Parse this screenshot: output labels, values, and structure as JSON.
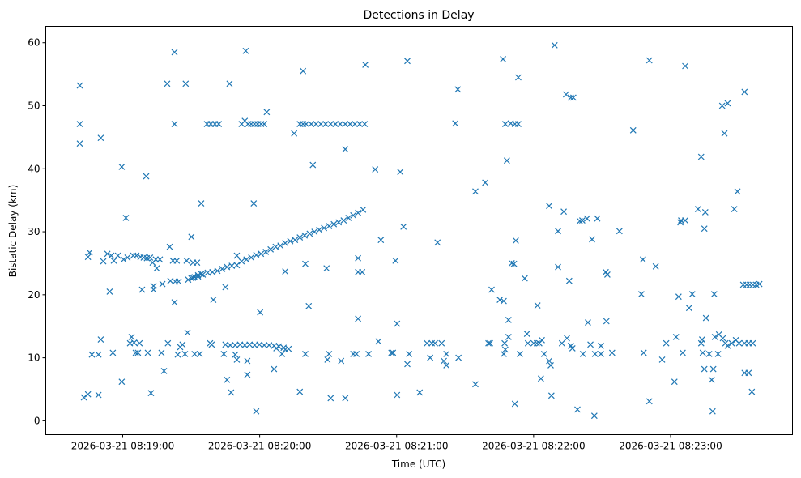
{
  "chart_data": {
    "type": "scatter",
    "title": "Detections in Delay",
    "xlabel": "Time (UTC)",
    "ylabel": "Bistatic Delay (km)",
    "x_units": "seconds since 2026-03-21 08:19:00 UTC",
    "xlim": [
      -33.7,
      293.4
    ],
    "ylim": [
      -2.2,
      62.6
    ],
    "grid": false,
    "marker": "x",
    "color": "#1f77b4",
    "x_ticks": [
      {
        "value": 0,
        "label": "2026-03-21 08:19:00"
      },
      {
        "value": 60,
        "label": "2026-03-21 08:20:00"
      },
      {
        "value": 120,
        "label": "2026-03-21 08:21:00"
      },
      {
        "value": 180,
        "label": "2026-03-21 08:22:00"
      },
      {
        "value": 240,
        "label": "2026-03-21 08:23:00"
      }
    ],
    "y_ticks": [
      {
        "value": 0,
        "label": "0"
      },
      {
        "value": 10,
        "label": "10"
      },
      {
        "value": 20,
        "label": "20"
      },
      {
        "value": 30,
        "label": "30"
      },
      {
        "value": 40,
        "label": "40"
      },
      {
        "value": 50,
        "label": "50"
      },
      {
        "value": 60,
        "label": "60"
      }
    ],
    "points": [
      [
        -18.8,
        53.2
      ],
      [
        -18.8,
        47.1
      ],
      [
        -18.8,
        44.0
      ],
      [
        -17,
        3.7
      ],
      [
        -15.2,
        4.2
      ],
      [
        -15.2,
        26.0
      ],
      [
        -14.5,
        26.7
      ],
      [
        -13.5,
        10.5
      ],
      [
        -10.6,
        10.5
      ],
      [
        -10.6,
        4.1
      ],
      [
        -9.6,
        44.9
      ],
      [
        -9.6,
        12.9
      ],
      [
        -8.5,
        25.3
      ],
      [
        -6.7,
        26.5
      ],
      [
        -5.7,
        20.5
      ],
      [
        -5.0,
        26.2
      ],
      [
        -4.3,
        10.8
      ],
      [
        -3.9,
        25.4
      ],
      [
        -2.1,
        26.2
      ],
      [
        -0.4,
        6.2
      ],
      [
        -0.4,
        40.3
      ],
      [
        0.4,
        25.6
      ],
      [
        1.4,
        32.2
      ],
      [
        2.1,
        25.9
      ],
      [
        3.2,
        12.3
      ],
      [
        3.9,
        13.3
      ],
      [
        4.6,
        26.2
      ],
      [
        5.0,
        12.4
      ],
      [
        5.7,
        10.8
      ],
      [
        6.0,
        26.2
      ],
      [
        6.7,
        10.8
      ],
      [
        7.4,
        12.3
      ],
      [
        7.8,
        26.0
      ],
      [
        9.2,
        25.9
      ],
      [
        8.5,
        20.8
      ],
      [
        10.3,
        38.8
      ],
      [
        10.6,
        25.8
      ],
      [
        11.0,
        10.8
      ],
      [
        12.0,
        25.9
      ],
      [
        12.4,
        4.4
      ],
      [
        13.1,
        25.1
      ],
      [
        13.5,
        20.8
      ],
      [
        13.5,
        21.4
      ],
      [
        14.9,
        24.2
      ],
      [
        14.5,
        25.6
      ],
      [
        16.3,
        25.6
      ],
      [
        17.0,
        10.8
      ],
      [
        17.4,
        21.7
      ],
      [
        18.1,
        7.9
      ],
      [
        19.5,
        53.5
      ],
      [
        19.8,
        12.3
      ],
      [
        20.6,
        27.6
      ],
      [
        20.9,
        22.2
      ],
      [
        22.0,
        25.4
      ],
      [
        22.7,
        58.5
      ],
      [
        22.7,
        47.1
      ],
      [
        22.7,
        18.8
      ],
      [
        23.0,
        22.1
      ],
      [
        23.7,
        25.4
      ],
      [
        24.1,
        10.5
      ],
      [
        24.5,
        22.1
      ],
      [
        25.2,
        11.7
      ],
      [
        26.2,
        12.1
      ],
      [
        27.3,
        10.6
      ],
      [
        27.6,
        53.5
      ],
      [
        28.0,
        25.4
      ],
      [
        28.4,
        14.0
      ],
      [
        30.1,
        29.2
      ],
      [
        30.1,
        22.6
      ],
      [
        30.8,
        25.1
      ],
      [
        31.5,
        10.6
      ],
      [
        31.5,
        22.8
      ],
      [
        32.6,
        25.1
      ],
      [
        33.0,
        23.1
      ],
      [
        33.7,
        10.6
      ],
      [
        34.4,
        34.5
      ],
      [
        34.4,
        23.3
      ],
      [
        28.7,
        22.4
      ],
      [
        30.8,
        22.7
      ],
      [
        33.0,
        22.9
      ],
      [
        35.1,
        23.2
      ],
      [
        37.2,
        23.5
      ],
      [
        39.3,
        23.6
      ],
      [
        41.5,
        23.8
      ],
      [
        43.6,
        24.1
      ],
      [
        45.7,
        24.4
      ],
      [
        47.8,
        24.6
      ],
      [
        50.0,
        24.7
      ],
      [
        52.1,
        25.3
      ],
      [
        54.2,
        25.6
      ],
      [
        56.3,
        25.9
      ],
      [
        58.5,
        26.3
      ],
      [
        60.6,
        26.5
      ],
      [
        62.7,
        26.8
      ],
      [
        64.8,
        27.2
      ],
      [
        67.0,
        27.6
      ],
      [
        69.1,
        27.8
      ],
      [
        71.2,
        28.2
      ],
      [
        73.4,
        28.5
      ],
      [
        75.5,
        28.7
      ],
      [
        77.6,
        29.1
      ],
      [
        79.7,
        29.4
      ],
      [
        81.9,
        29.7
      ],
      [
        84.0,
        30.0
      ],
      [
        86.1,
        30.3
      ],
      [
        88.2,
        30.6
      ],
      [
        90.4,
        30.9
      ],
      [
        92.5,
        31.2
      ],
      [
        94.6,
        31.5
      ],
      [
        96.8,
        31.8
      ],
      [
        98.9,
        32.2
      ],
      [
        101.0,
        32.6
      ],
      [
        103.1,
        33.0
      ],
      [
        105.3,
        33.5
      ],
      [
        36.9,
        47.1
      ],
      [
        38.6,
        47.1
      ],
      [
        40.4,
        47.1
      ],
      [
        42.1,
        47.1
      ],
      [
        52.1,
        47.1
      ],
      [
        53.5,
        47.6
      ],
      [
        54.9,
        47.1
      ],
      [
        56.3,
        47.1
      ],
      [
        57.7,
        47.1
      ],
      [
        59.1,
        47.1
      ],
      [
        60.6,
        47.1
      ],
      [
        62.0,
        47.1
      ],
      [
        77.6,
        47.1
      ],
      [
        79.0,
        47.1
      ],
      [
        80.4,
        47.1
      ],
      [
        82.6,
        47.1
      ],
      [
        84.7,
        47.1
      ],
      [
        86.8,
        47.1
      ],
      [
        88.9,
        47.1
      ],
      [
        91.1,
        47.1
      ],
      [
        93.2,
        47.1
      ],
      [
        95.3,
        47.1
      ],
      [
        97.5,
        47.1
      ],
      [
        99.6,
        47.1
      ],
      [
        101.7,
        47.1
      ],
      [
        103.8,
        47.1
      ],
      [
        106.0,
        47.1
      ],
      [
        45.0,
        12.1
      ],
      [
        47.1,
        12.0
      ],
      [
        49.3,
        12.0
      ],
      [
        51.4,
        12.1
      ],
      [
        53.5,
        12.0
      ],
      [
        55.6,
        12.1
      ],
      [
        57.8,
        12.0
      ],
      [
        59.9,
        12.1
      ],
      [
        62.0,
        12.0
      ],
      [
        64.1,
        12.0
      ],
      [
        66.3,
        11.9
      ],
      [
        68.4,
        11.8
      ],
      [
        70.5,
        11.6
      ],
      [
        72.7,
        11.4
      ],
      [
        38.3,
        12.3
      ],
      [
        39.0,
        12.1
      ],
      [
        44.3,
        10.6
      ],
      [
        39.7,
        19.2
      ],
      [
        45.0,
        21.2
      ],
      [
        45.7,
        6.5
      ],
      [
        46.8,
        53.5
      ],
      [
        47.5,
        4.5
      ],
      [
        49.3,
        10.5
      ],
      [
        50.0,
        26.2
      ],
      [
        50.0,
        9.7
      ],
      [
        53.9,
        58.7
      ],
      [
        54.6,
        7.3
      ],
      [
        54.6,
        9.5
      ],
      [
        57.4,
        34.5
      ],
      [
        58.5,
        1.5
      ],
      [
        60.2,
        17.2
      ],
      [
        63.1,
        49.0
      ],
      [
        66.3,
        8.2
      ],
      [
        67.3,
        11.5
      ],
      [
        69.8,
        10.6
      ],
      [
        71.2,
        11.3
      ],
      [
        71.2,
        23.7
      ],
      [
        75.1,
        45.6
      ],
      [
        77.6,
        4.6
      ],
      [
        79.0,
        55.5
      ],
      [
        80.0,
        24.9
      ],
      [
        80.0,
        10.6
      ],
      [
        81.5,
        18.2
      ],
      [
        83.3,
        40.6
      ],
      [
        89.3,
        24.2
      ],
      [
        89.7,
        9.7
      ],
      [
        90.4,
        10.6
      ],
      [
        91.1,
        3.6
      ],
      [
        95.7,
        9.5
      ],
      [
        97.5,
        3.6
      ],
      [
        97.5,
        43.1
      ],
      [
        101.0,
        10.6
      ],
      [
        102.4,
        10.6
      ],
      [
        103.1,
        23.6
      ],
      [
        104.9,
        23.6
      ],
      [
        103.1,
        25.8
      ],
      [
        103.1,
        16.2
      ],
      [
        106.3,
        56.5
      ],
      [
        107.7,
        10.6
      ],
      [
        110.6,
        39.9
      ],
      [
        112.0,
        12.6
      ],
      [
        113.1,
        28.7
      ],
      [
        117.7,
        10.8
      ],
      [
        118.4,
        10.8
      ],
      [
        119.5,
        25.4
      ],
      [
        120.2,
        4.1
      ],
      [
        120.2,
        15.4
      ],
      [
        121.6,
        39.5
      ],
      [
        123.0,
        30.8
      ],
      [
        124.7,
        57.1
      ],
      [
        124.7,
        9.0
      ],
      [
        125.5,
        10.6
      ],
      [
        130.1,
        4.5
      ],
      [
        133.3,
        12.3
      ],
      [
        134.7,
        10.0
      ],
      [
        135.4,
        12.3
      ],
      [
        136.8,
        12.3
      ],
      [
        137.9,
        28.3
      ],
      [
        139.7,
        12.3
      ],
      [
        140.7,
        9.5
      ],
      [
        141.8,
        10.6
      ],
      [
        141.8,
        8.8
      ],
      [
        145.7,
        47.2
      ],
      [
        146.8,
        52.6
      ],
      [
        147.1,
        10.0
      ],
      [
        154.5,
        5.8
      ],
      [
        154.5,
        36.4
      ],
      [
        158.8,
        37.8
      ],
      [
        160.2,
        12.3
      ],
      [
        160.9,
        12.3
      ],
      [
        161.6,
        20.8
      ],
      [
        165.2,
        19.2
      ],
      [
        166.6,
        57.4
      ],
      [
        166.9,
        19.0
      ],
      [
        166.9,
        10.6
      ],
      [
        167.3,
        12.3
      ],
      [
        167.6,
        11.3
      ],
      [
        167.6,
        47.1
      ],
      [
        168.3,
        41.3
      ],
      [
        169.0,
        13.3
      ],
      [
        169.0,
        16.0
      ],
      [
        170.0,
        47.2
      ],
      [
        170.4,
        25.0
      ],
      [
        171.4,
        24.9
      ],
      [
        171.8,
        47.1
      ],
      [
        173.3,
        47.1
      ],
      [
        171.8,
        2.7
      ],
      [
        172.2,
        28.6
      ],
      [
        173.3,
        54.5
      ],
      [
        174.0,
        10.6
      ],
      [
        176.1,
        22.6
      ],
      [
        177.1,
        13.8
      ],
      [
        177.5,
        12.3
      ],
      [
        180.0,
        12.3
      ],
      [
        181.4,
        12.3
      ],
      [
        181.7,
        18.3
      ],
      [
        182.5,
        12.3
      ],
      [
        183.2,
        6.7
      ],
      [
        183.6,
        12.8
      ],
      [
        184.6,
        10.6
      ],
      [
        186.8,
        9.5
      ],
      [
        187.5,
        8.8
      ],
      [
        186.8,
        34.1
      ],
      [
        187.8,
        4.0
      ],
      [
        189.2,
        59.6
      ],
      [
        190.7,
        30.1
      ],
      [
        190.7,
        24.4
      ],
      [
        192.4,
        12.3
      ],
      [
        193.2,
        33.2
      ],
      [
        194.2,
        51.8
      ],
      [
        194.6,
        13.1
      ],
      [
        195.6,
        22.2
      ],
      [
        196.3,
        51.3
      ],
      [
        197.4,
        51.3
      ],
      [
        196.3,
        11.9
      ],
      [
        197.0,
        11.5
      ],
      [
        199.2,
        1.8
      ],
      [
        200.2,
        31.7
      ],
      [
        201.3,
        31.8
      ],
      [
        201.6,
        10.6
      ],
      [
        203.4,
        32.1
      ],
      [
        203.8,
        15.6
      ],
      [
        204.9,
        12.1
      ],
      [
        205.6,
        28.8
      ],
      [
        206.6,
        0.8
      ],
      [
        206.9,
        10.6
      ],
      [
        207.9,
        32.1
      ],
      [
        209.5,
        10.6
      ],
      [
        209.5,
        11.9
      ],
      [
        211.6,
        23.6
      ],
      [
        212.3,
        23.2
      ],
      [
        211.9,
        15.8
      ],
      [
        214.4,
        10.8
      ],
      [
        217.6,
        30.1
      ],
      [
        223.6,
        46.1
      ],
      [
        227.2,
        20.1
      ],
      [
        227.9,
        25.6
      ],
      [
        228.2,
        10.8
      ],
      [
        230.7,
        57.2
      ],
      [
        230.7,
        3.1
      ],
      [
        233.5,
        24.5
      ],
      [
        236.3,
        9.7
      ],
      [
        238.1,
        12.3
      ],
      [
        241.7,
        6.2
      ],
      [
        242.4,
        13.3
      ],
      [
        243.5,
        19.7
      ],
      [
        244.3,
        31.5
      ],
      [
        244.6,
        31.8
      ],
      [
        245.3,
        10.8
      ],
      [
        246.4,
        56.3
      ],
      [
        246.4,
        31.8
      ],
      [
        248.1,
        17.9
      ],
      [
        249.5,
        20.1
      ],
      [
        252.0,
        33.6
      ],
      [
        253.4,
        41.9
      ],
      [
        253.4,
        12.3
      ],
      [
        253.8,
        12.9
      ],
      [
        254.1,
        10.8
      ],
      [
        254.8,
        30.5
      ],
      [
        255.2,
        33.1
      ],
      [
        255.5,
        16.3
      ],
      [
        254.8,
        8.2
      ],
      [
        256.9,
        10.6
      ],
      [
        258.0,
        6.5
      ],
      [
        258.4,
        1.5
      ],
      [
        258.7,
        8.2
      ],
      [
        259.1,
        20.1
      ],
      [
        259.4,
        13.3
      ],
      [
        260.8,
        10.6
      ],
      [
        261.2,
        13.7
      ],
      [
        262.6,
        50.0
      ],
      [
        262.9,
        13.1
      ],
      [
        263.6,
        45.6
      ],
      [
        264.0,
        12.3
      ],
      [
        265.0,
        50.4
      ],
      [
        265.0,
        11.9
      ],
      [
        266.8,
        12.3
      ],
      [
        267.9,
        33.6
      ],
      [
        268.6,
        12.8
      ],
      [
        269.3,
        36.4
      ],
      [
        270.0,
        12.3
      ],
      [
        272.4,
        52.2
      ],
      [
        272.4,
        7.6
      ],
      [
        274.2,
        7.6
      ],
      [
        275.6,
        4.6
      ],
      [
        272.4,
        12.3
      ],
      [
        274.2,
        12.3
      ],
      [
        276.0,
        12.3
      ],
      [
        271.8,
        21.6
      ],
      [
        273.3,
        21.6
      ],
      [
        274.7,
        21.6
      ],
      [
        276.1,
        21.6
      ],
      [
        277.5,
        21.6
      ],
      [
        278.9,
        21.7
      ]
    ]
  }
}
